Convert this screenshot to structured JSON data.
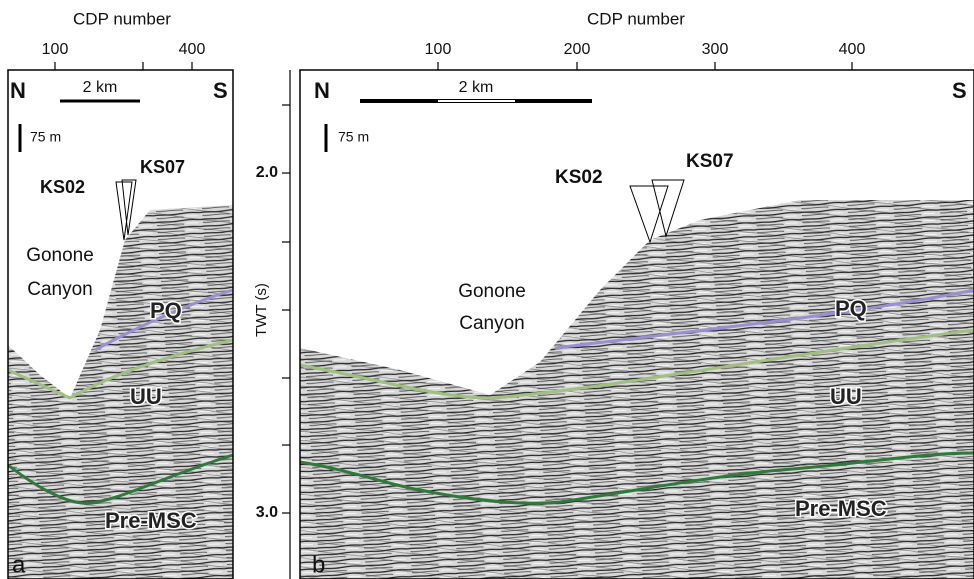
{
  "panels": [
    {
      "label": "a",
      "axis_title": "CDP number",
      "ticks": [
        "100",
        "400"
      ],
      "north": "N",
      "south": "S",
      "scale_h": "2 km",
      "scale_v": "75 m",
      "wells": [
        "KS02",
        "KS07"
      ],
      "canyon": [
        "Gonone",
        "Canyon"
      ],
      "horizons": [
        "PQ",
        "UU",
        "Pre-MSC"
      ]
    },
    {
      "label": "b",
      "axis_title": "CDP number",
      "ticks": [
        "100",
        "200",
        "300",
        "400"
      ],
      "north": "N",
      "south": "S",
      "scale_h": "2 km",
      "scale_v": "75 m",
      "wells": [
        "KS02",
        "KS07"
      ],
      "canyon": [
        "Gonone",
        "Canyon"
      ],
      "horizons": [
        "PQ",
        "UU",
        "Pre-MSC"
      ]
    }
  ],
  "twt_axis": {
    "title": "TWT (s)",
    "ticks": [
      "2.0",
      "3.0"
    ]
  }
}
